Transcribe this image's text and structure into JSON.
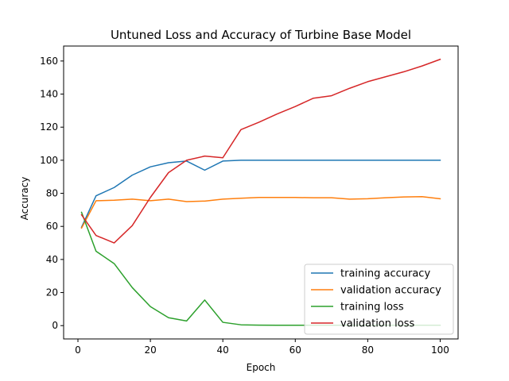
{
  "chart_data": {
    "type": "line",
    "title": "Untuned Loss and Accuracy of Turbine Base Model",
    "xlabel": "Epoch",
    "ylabel": "Accuracy",
    "xlim": [
      -3.95,
      104.95
    ],
    "ylim": [
      -8.05,
      169.05
    ],
    "xticks": [
      0,
      20,
      40,
      60,
      80,
      100
    ],
    "yticks": [
      0,
      20,
      40,
      60,
      80,
      100,
      120,
      140,
      160
    ],
    "grid": false,
    "legend_position": "lower-right",
    "x": [
      1,
      5,
      10,
      15,
      20,
      25,
      30,
      35,
      40,
      45,
      50,
      55,
      60,
      65,
      70,
      75,
      80,
      85,
      90,
      95,
      100
    ],
    "series": [
      {
        "name": "training accuracy",
        "color": "#1f77b4",
        "values": [
          59.5,
          78.5,
          83.5,
          91.0,
          96.0,
          98.5,
          99.5,
          94.0,
          99.5,
          100,
          100,
          100,
          100,
          100,
          100,
          100,
          100,
          100,
          100,
          100,
          100
        ]
      },
      {
        "name": "validation accuracy",
        "color": "#ff7f0e",
        "values": [
          59.0,
          75.5,
          75.8,
          76.5,
          75.5,
          76.5,
          75.0,
          75.3,
          76.5,
          77.0,
          77.5,
          77.5,
          77.5,
          77.3,
          77.3,
          76.5,
          76.7,
          77.3,
          77.8,
          78.0,
          76.7
        ]
      },
      {
        "name": "training loss",
        "color": "#2ca02c",
        "values": [
          68.5,
          45.0,
          37.5,
          23.0,
          11.5,
          4.8,
          2.8,
          15.5,
          2.0,
          0.5,
          0.3,
          0.2,
          0.2,
          0.2,
          0.2,
          0.2,
          0.2,
          0.2,
          0.2,
          0.2,
          0.2
        ]
      },
      {
        "name": "validation loss",
        "color": "#d62728",
        "values": [
          67.0,
          54.5,
          50.0,
          60.5,
          77.5,
          92.5,
          100.0,
          102.5,
          101.5,
          118.5,
          123.0,
          128.0,
          132.5,
          137.5,
          139.0,
          143.5,
          147.5,
          150.5,
          153.5,
          157.0,
          161.0
        ]
      }
    ]
  }
}
